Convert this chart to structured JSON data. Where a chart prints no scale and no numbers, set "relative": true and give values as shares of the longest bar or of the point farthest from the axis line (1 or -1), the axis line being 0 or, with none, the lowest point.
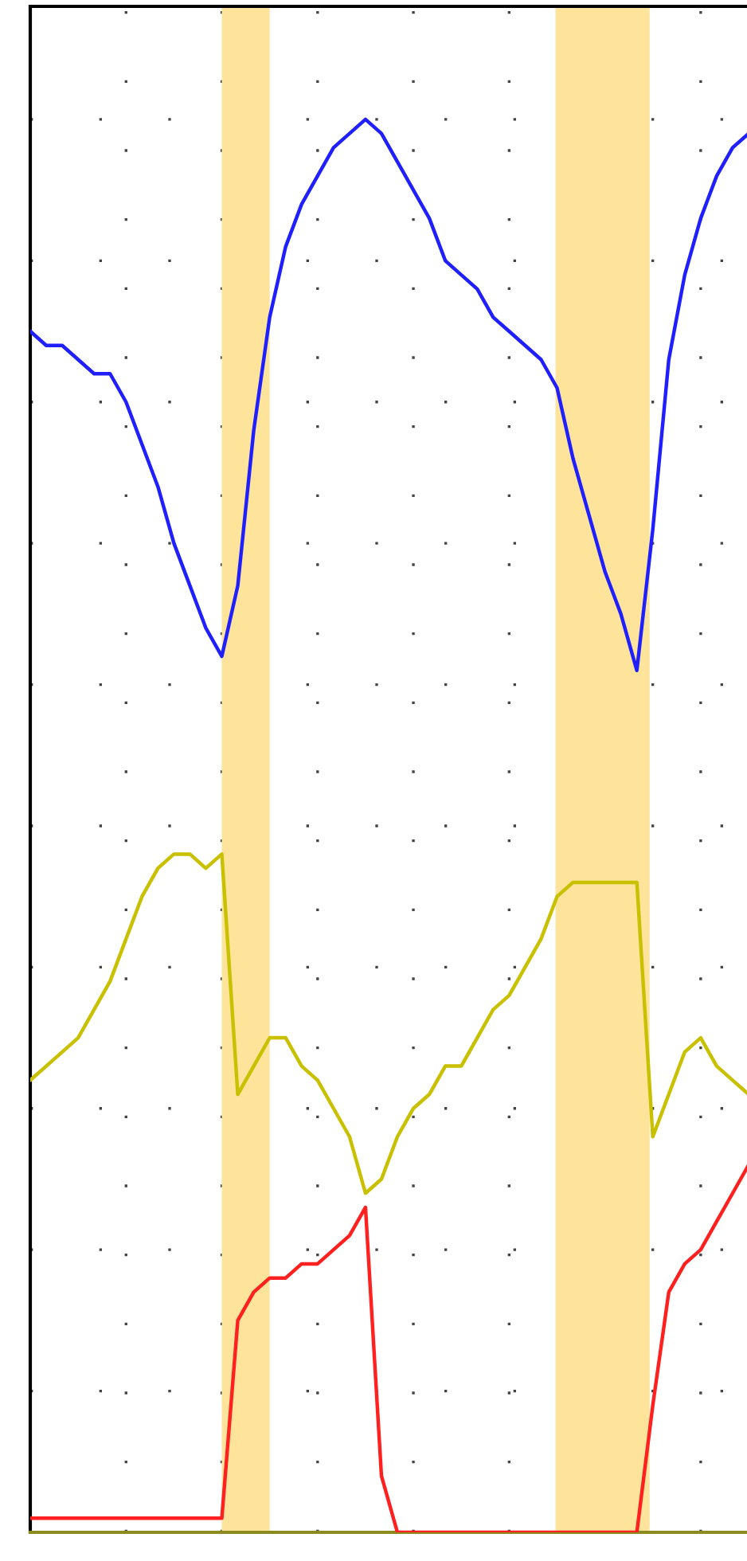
{
  "chart_data": {
    "type": "line",
    "relative": true,
    "grid": true,
    "categories": [
      null,
      null,
      null,
      null,
      null,
      null,
      null,
      null,
      null,
      null,
      null,
      null,
      null,
      null,
      null,
      null,
      null,
      null,
      null,
      null,
      null,
      null,
      null,
      null,
      null,
      null,
      null,
      null,
      null,
      null,
      null,
      null,
      null,
      null,
      null,
      null,
      null,
      null,
      null,
      null,
      null,
      null,
      null,
      null,
      null,
      null
    ],
    "series": [
      {
        "color": "#2020ff",
        "values": [
          0.85,
          0.84,
          0.84,
          0.83,
          0.82,
          0.82,
          0.8,
          0.77,
          0.74,
          0.7,
          0.67,
          0.64,
          0.62,
          0.67,
          0.78,
          0.86,
          0.91,
          0.94,
          0.96,
          0.98,
          0.99,
          1.0,
          0.99,
          0.97,
          0.95,
          0.93,
          0.9,
          0.89,
          0.88,
          0.86,
          0.85,
          0.84,
          0.83,
          0.81,
          0.76,
          0.72,
          0.68,
          0.65,
          0.61,
          0.71,
          0.83,
          0.89,
          0.93,
          0.96,
          0.98,
          0.99
        ]
      },
      {
        "color": "#c8c000",
        "values": [
          0.32,
          0.33,
          0.34,
          0.35,
          0.37,
          0.39,
          0.42,
          0.45,
          0.47,
          0.48,
          0.48,
          0.47,
          0.48,
          0.31,
          0.33,
          0.35,
          0.35,
          0.33,
          0.32,
          0.3,
          0.28,
          0.24,
          0.25,
          0.28,
          0.3,
          0.31,
          0.33,
          0.33,
          0.35,
          0.37,
          0.38,
          0.4,
          0.42,
          0.45,
          0.46,
          0.46,
          0.46,
          0.46,
          0.46,
          0.28,
          0.31,
          0.34,
          0.35,
          0.33,
          0.32,
          0.31
        ]
      },
      {
        "color": "#ff2020",
        "values": [
          0.01,
          0.01,
          0.01,
          0.01,
          0.01,
          0.01,
          0.01,
          0.01,
          0.01,
          0.01,
          0.01,
          0.01,
          0.01,
          0.15,
          0.17,
          0.18,
          0.18,
          0.19,
          0.19,
          0.2,
          0.21,
          0.23,
          0.04,
          0.0,
          0.0,
          0.0,
          0.0,
          0.0,
          0.0,
          0.0,
          0.0,
          0.0,
          0.0,
          0.0,
          0.0,
          0.0,
          0.0,
          0.0,
          0.0,
          0.09,
          0.17,
          0.19,
          0.2,
          0.22,
          0.24,
          0.26
        ]
      }
    ]
  }
}
